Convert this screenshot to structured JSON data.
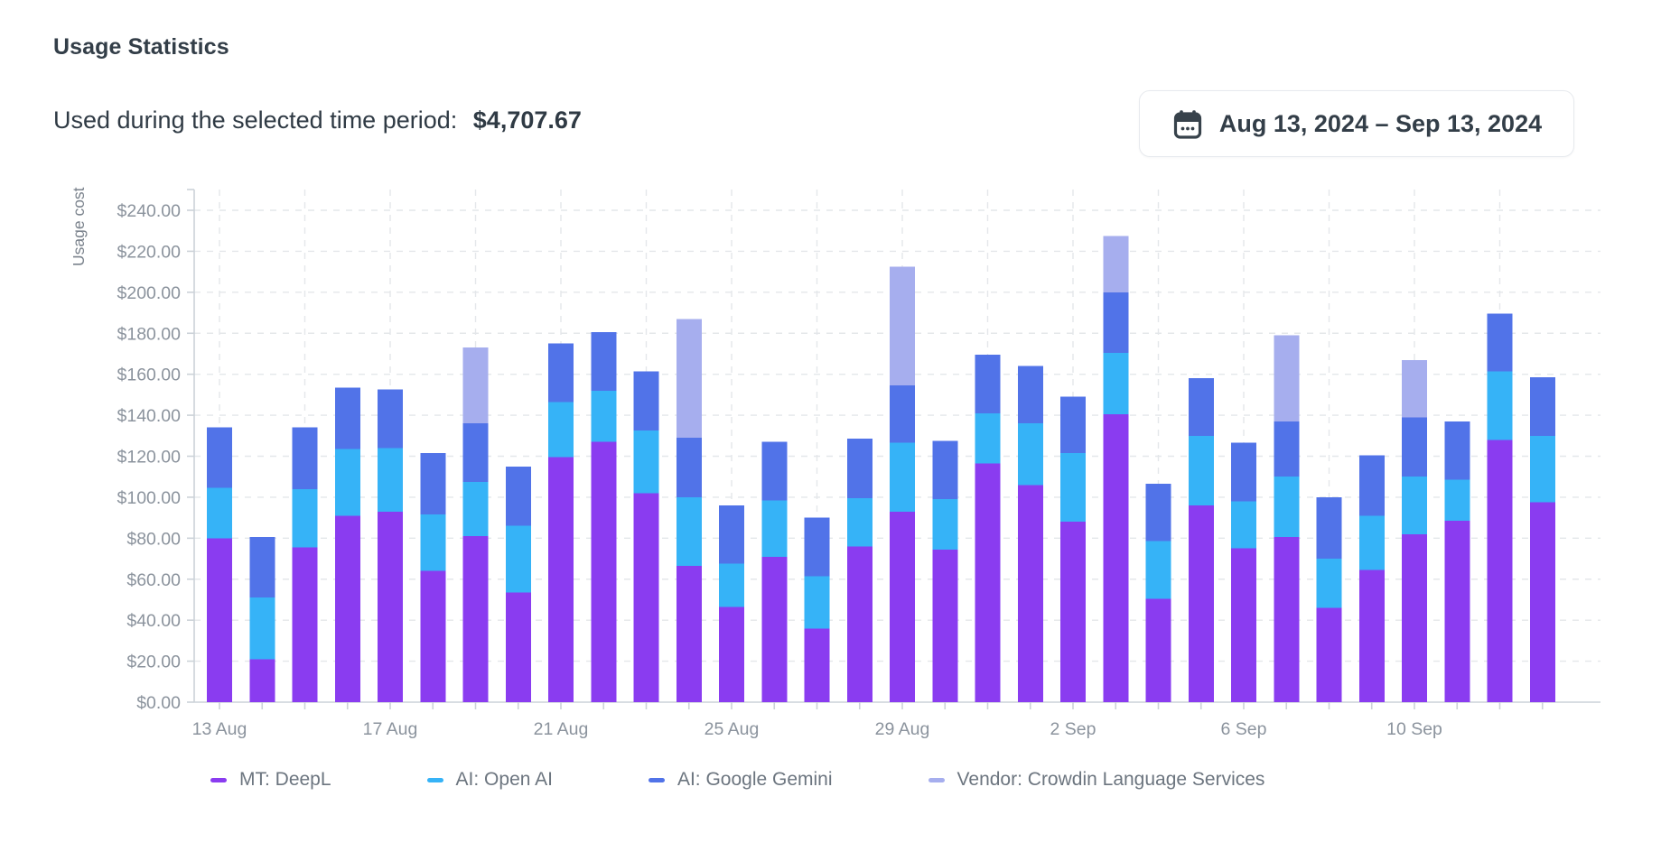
{
  "header": {
    "title": "Usage Statistics",
    "summary_label": "Used during the selected time period:",
    "summary_value": "$4,707.67",
    "date_range": {
      "label": "Aug 13, 2024 – Sep 13, 2024",
      "icon": "calendar-icon"
    }
  },
  "colors": {
    "deepl": "#8a3cf0",
    "openai": "#36b3f7",
    "gemini": "#5173e8",
    "crowdin": "#a6aeee",
    "gridline": "#e4e7ea",
    "axis": "#ccd2d8",
    "axis_label": "#8b939d",
    "axis_title": "#7a828c",
    "legend_text": "#6c757f",
    "heading_text": "#333e48"
  },
  "chart_data": {
    "type": "bar",
    "stacked": true,
    "title": "",
    "xlabel": "",
    "ylabel": "Usage cost",
    "y_tick_prefix": "$",
    "y_tick_decimals": 2,
    "ylim": [
      0,
      250
    ],
    "y_tick_step": 20,
    "y_tick_max": 240,
    "x_label_every": 4,
    "v_gridline_every": 2,
    "grid": true,
    "legend_position": "bottom",
    "categories": [
      "13 Aug",
      "14 Aug",
      "15 Aug",
      "16 Aug",
      "17 Aug",
      "18 Aug",
      "19 Aug",
      "20 Aug",
      "21 Aug",
      "22 Aug",
      "23 Aug",
      "24 Aug",
      "25 Aug",
      "26 Aug",
      "27 Aug",
      "28 Aug",
      "29 Aug",
      "30 Aug",
      "31 Aug",
      "1 Sep",
      "2 Sep",
      "3 Sep",
      "4 Sep",
      "5 Sep",
      "6 Sep",
      "7 Sep",
      "8 Sep",
      "9 Sep",
      "10 Sep",
      "11 Sep",
      "12 Sep",
      "13 Sep"
    ],
    "x_axis_labels_shown": [
      "13 Aug",
      "17 Aug",
      "21 Aug",
      "25 Aug",
      "29 Aug",
      "2 Sep",
      "6 Sep",
      "10 Sep"
    ],
    "series": [
      {
        "name": "MT: DeepL",
        "color_key": "deepl",
        "values": [
          80,
          21,
          75.5,
          91,
          93,
          64,
          81,
          53.5,
          119.5,
          127,
          102,
          66.5,
          46.5,
          71,
          36,
          76,
          93,
          74.5,
          116.5,
          106,
          88,
          140.5,
          50.5,
          96,
          75,
          80.5,
          46,
          64.5,
          82,
          88.5,
          128,
          97.5
        ]
      },
      {
        "name": "AI: Open AI",
        "color_key": "openai",
        "values": [
          24.5,
          30,
          28.5,
          32.5,
          31,
          27.5,
          26.5,
          32.5,
          27,
          25,
          30.5,
          33.5,
          21,
          27.5,
          25.5,
          23.5,
          33.5,
          24.5,
          24.5,
          30,
          33.5,
          30,
          28,
          34,
          23,
          29.5,
          24,
          26.5,
          28,
          20,
          33.5,
          32.5
        ]
      },
      {
        "name": "AI: Google Gemini",
        "color_key": "gemini",
        "values": [
          29.5,
          29.5,
          30,
          30,
          28.5,
          30,
          28.5,
          29,
          28.5,
          28.5,
          29,
          29,
          28.5,
          28.5,
          28.5,
          29,
          28,
          28.5,
          28.5,
          28,
          27.5,
          29.5,
          28,
          28,
          28.5,
          27,
          30,
          29.5,
          29,
          28.5,
          28,
          28.5
        ]
      },
      {
        "name": "Vendor: Crowdin Language Services",
        "color_key": "crowdin",
        "values": [
          0,
          0,
          0,
          0,
          0,
          0,
          37,
          0,
          0,
          0,
          0,
          58,
          0,
          0,
          0,
          0,
          58,
          0,
          0,
          0,
          0,
          27.5,
          0,
          0,
          0,
          42,
          0,
          0,
          28,
          0,
          0,
          0
        ]
      }
    ]
  }
}
